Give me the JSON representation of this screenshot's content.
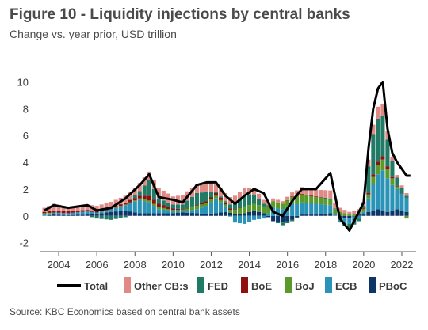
{
  "title": "Figure 10 - Liquidity injections by central banks",
  "subtitle": "Change vs. year prior, USD trillion",
  "source": "Source: KBC Economics based on central bank assets",
  "chart_data": {
    "type": "bar",
    "stacked": true,
    "ylim": [
      -2.2,
      10.5
    ],
    "yticks": [
      -2,
      0,
      2,
      4,
      6,
      8,
      10
    ],
    "xlim": [
      2003.0,
      2022.75
    ],
    "xticks": [
      2004,
      2006,
      2008,
      2010,
      2012,
      2014,
      2016,
      2018,
      2020,
      2022
    ],
    "grid": false,
    "legend_position": "bottom",
    "colors": {
      "Other CB:s": "#e08a86",
      "FED": "#217a66",
      "BoE": "#8e1010",
      "BoJ": "#5a9a2a",
      "ECB": "#2b93b8",
      "PBoC": "#0e3566",
      "Total": "#000000"
    },
    "anchors": [
      [
        2003.25,
        0.3,
        0.0,
        0.1,
        0.1,
        0.1,
        0.0,
        0.4
      ],
      [
        2003.75,
        0.5,
        0.0,
        0.15,
        0.0,
        0.15,
        0.1,
        0.8
      ],
      [
        2004.5,
        0.3,
        0.0,
        0.15,
        0.0,
        0.15,
        0.05,
        0.6
      ],
      [
        2005.5,
        0.4,
        0.0,
        0.1,
        0.0,
        0.25,
        0.1,
        0.8
      ],
      [
        2006.0,
        0.4,
        -0.2,
        0.1,
        0.0,
        0.1,
        0.15,
        0.4
      ],
      [
        2006.75,
        0.45,
        -0.3,
        0.1,
        0.0,
        0.2,
        0.3,
        0.6
      ],
      [
        2007.5,
        0.5,
        -0.1,
        0.15,
        0.05,
        0.4,
        0.4,
        1.3
      ],
      [
        2008.25,
        0.6,
        0.35,
        0.2,
        0.1,
        1.0,
        0.2,
        2.3
      ],
      [
        2008.75,
        0.6,
        1.2,
        0.35,
        0.15,
        0.8,
        0.2,
        3.1
      ],
      [
        2009.25,
        0.8,
        0.4,
        0.25,
        0.15,
        0.3,
        0.2,
        1.4
      ],
      [
        2010.0,
        0.6,
        0.3,
        0.1,
        0.05,
        0.2,
        0.2,
        1.2
      ],
      [
        2010.5,
        0.7,
        0.35,
        0.05,
        0.1,
        0.1,
        0.25,
        1.0
      ],
      [
        2011.25,
        0.7,
        0.9,
        0.05,
        0.25,
        0.3,
        0.2,
        2.3
      ],
      [
        2011.75,
        0.7,
        0.7,
        0.15,
        0.2,
        0.6,
        0.15,
        2.5
      ],
      [
        2012.25,
        0.6,
        0.1,
        0.2,
        0.2,
        1.1,
        0.2,
        2.5
      ],
      [
        2012.75,
        0.6,
        0.1,
        0.15,
        0.15,
        0.4,
        0.3,
        1.5
      ],
      [
        2013.25,
        0.5,
        0.5,
        0.05,
        0.3,
        -0.5,
        0.15,
        0.9
      ],
      [
        2013.75,
        0.5,
        0.9,
        0.0,
        0.5,
        -0.6,
        0.2,
        1.5
      ],
      [
        2014.25,
        0.5,
        0.7,
        0.0,
        0.5,
        -0.3,
        0.4,
        2.0
      ],
      [
        2014.75,
        0.3,
        0.2,
        0.0,
        0.5,
        -0.2,
        0.2,
        1.7
      ],
      [
        2015.25,
        0.2,
        0.0,
        0.0,
        0.5,
        0.6,
        -0.4,
        0.3
      ],
      [
        2015.75,
        0.2,
        -0.2,
        0.0,
        0.4,
        0.5,
        -0.5,
        0.0
      ],
      [
        2016.25,
        0.3,
        -0.1,
        0.05,
        0.5,
        0.9,
        -0.3,
        1.1
      ],
      [
        2016.75,
        0.5,
        0.0,
        0.05,
        0.6,
        0.9,
        0.1,
        2.0
      ],
      [
        2017.5,
        0.5,
        0.0,
        0.05,
        0.5,
        0.8,
        0.1,
        2.0
      ],
      [
        2018.25,
        0.6,
        0.1,
        0.0,
        0.4,
        0.6,
        0.2,
        3.2
      ],
      [
        2018.75,
        0.3,
        0.0,
        0.0,
        0.3,
        -0.3,
        -0.2,
        -0.2
      ],
      [
        2019.25,
        0.2,
        -0.4,
        0.0,
        0.1,
        -0.4,
        -0.2,
        -1.1
      ],
      [
        2019.75,
        0.3,
        -0.2,
        0.0,
        0.1,
        -0.2,
        0.1,
        0.3
      ],
      [
        2020.0,
        0.3,
        0.2,
        0.05,
        0.2,
        0.2,
        0.1,
        1.0
      ],
      [
        2020.25,
        0.5,
        2.0,
        0.1,
        0.3,
        1.0,
        0.3,
        5.0
      ],
      [
        2020.5,
        0.7,
        3.0,
        0.2,
        0.5,
        2.0,
        0.4,
        8.0
      ],
      [
        2020.75,
        0.9,
        3.2,
        0.25,
        0.7,
        2.6,
        0.5,
        9.5
      ],
      [
        2021.0,
        0.9,
        3.0,
        0.25,
        0.8,
        3.0,
        0.4,
        10.0
      ],
      [
        2021.25,
        0.6,
        2.0,
        0.2,
        0.7,
        2.5,
        0.3,
        6.5
      ],
      [
        2021.5,
        0.3,
        1.2,
        0.1,
        0.5,
        1.9,
        0.4,
        4.7
      ],
      [
        2021.75,
        0.2,
        0.6,
        0.05,
        0.2,
        1.5,
        0.5,
        4.0
      ],
      [
        2022.25,
        0.2,
        0.2,
        0.0,
        -0.2,
        1.0,
        0.3,
        3.0
      ],
      [
        2022.45,
        0.1,
        1.6,
        0.0,
        -0.5,
        0.3,
        0.1,
        3.0
      ]
    ],
    "anchor_columns": [
      "x",
      "Other CB:s",
      "FED",
      "BoE",
      "BoJ",
      "ECB",
      "PBoC",
      "Total"
    ],
    "legend": [
      "Total",
      "Other CB:s",
      "FED",
      "BoE",
      "BoJ",
      "ECB",
      "PBoC"
    ]
  }
}
